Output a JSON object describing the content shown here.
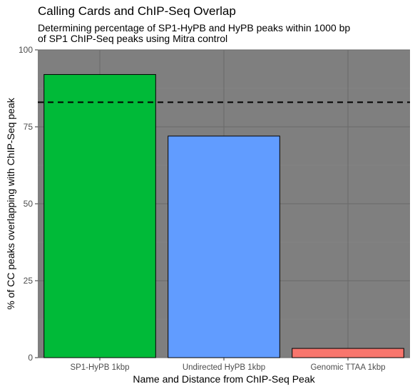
{
  "title": "Calling Cards and ChIP-Seq Overlap",
  "subtitle_lines": [
    "Determining percentage of SP1-HyPB and HyPB peaks within 1000 bp",
    "of SP1 ChIP-Seq peaks using Mitra control"
  ],
  "chart_data": {
    "type": "bar",
    "title": "Calling Cards and ChIP-Seq Overlap",
    "subtitle": "Determining percentage of SP1-HyPB and HyPB peaks within 1000 bp of SP1 ChIP-Seq peaks using Mitra control",
    "categories": [
      "SP1-HyPB 1kbp",
      "Undirected HyPB 1kbp",
      "Genomic TTAA 1kbp"
    ],
    "values": [
      92,
      72,
      3
    ],
    "colors": [
      "#00ba38",
      "#619cff",
      "#f8766d"
    ],
    "xlabel": "Name and Distance from ChIP-Seq Peak",
    "ylabel": "% of CC peaks overlapping with ChIP-Seq peak",
    "ylim": [
      0,
      100
    ],
    "yticks": [
      0,
      25,
      50,
      75,
      100
    ],
    "reference_line": {
      "y": 83,
      "style": "dashed",
      "color": "#000000"
    },
    "panel_background": "#7f7f7f",
    "grid": true,
    "legend": "none"
  }
}
